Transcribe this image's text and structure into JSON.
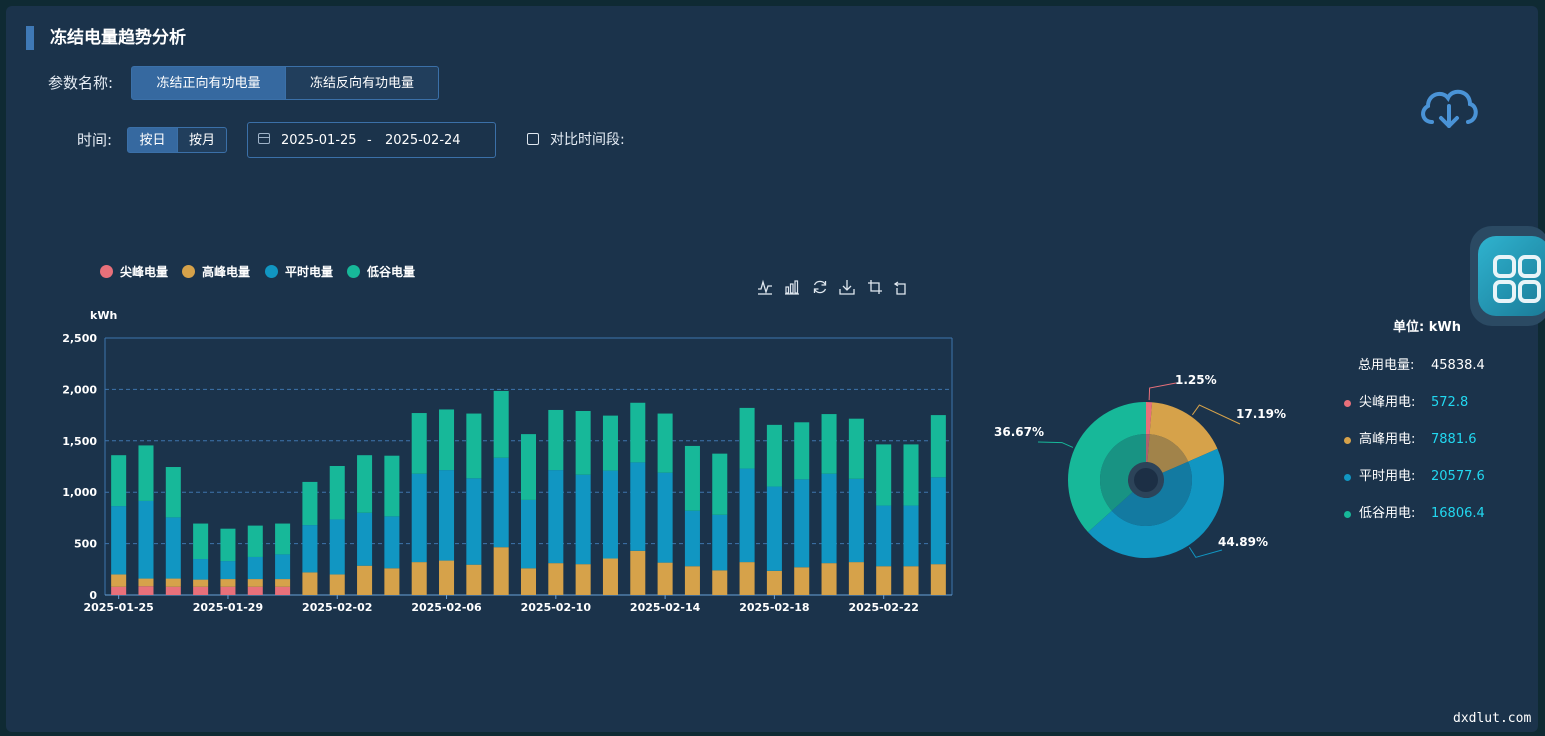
{
  "header": {
    "title": "冻结电量趋势分析"
  },
  "params": {
    "label": "参数名称:",
    "options": [
      "冻结正向有功电量",
      "冻结反向有功电量"
    ],
    "selected": 0
  },
  "time": {
    "label": "时间:",
    "modes": [
      "按日",
      "按月"
    ],
    "selected_mode": 0,
    "start": "2025-01-25",
    "separator": "-",
    "end": "2025-02-24",
    "compare_label": "对比时间段:",
    "compare_checked": false
  },
  "icons": {
    "download": "cloud-download-icon",
    "float": "app-grid-icon"
  },
  "colors": {
    "peak": "#e8707a",
    "high": "#d6a24a",
    "flat": "#1196c2",
    "valley": "#17b899",
    "axis": "#3e74ad"
  },
  "chart_data": [
    {
      "type": "bar",
      "stacked": true,
      "ylabel": "kWh",
      "ylim": [
        0,
        2500
      ],
      "yticks": [
        "0",
        "500",
        "1,000",
        "1,500",
        "2,000",
        "2,500"
      ],
      "grid": true,
      "legend_position": "top-left",
      "x": [
        "2025-01-25",
        "2025-01-26",
        "2025-01-27",
        "2025-01-28",
        "2025-01-29",
        "2025-01-30",
        "2025-01-31",
        "2025-02-01",
        "2025-02-02",
        "2025-02-03",
        "2025-02-04",
        "2025-02-05",
        "2025-02-06",
        "2025-02-07",
        "2025-02-08",
        "2025-02-09",
        "2025-02-10",
        "2025-02-11",
        "2025-02-12",
        "2025-02-13",
        "2025-02-14",
        "2025-02-15",
        "2025-02-16",
        "2025-02-17",
        "2025-02-18",
        "2025-02-19",
        "2025-02-20",
        "2025-02-21",
        "2025-02-22",
        "2025-02-23",
        "2025-02-24"
      ],
      "xtick_labels": [
        "2025-01-25",
        "2025-01-29",
        "2025-02-02",
        "2025-02-06",
        "2025-02-10",
        "2025-02-14",
        "2025-02-18",
        "2025-02-22"
      ],
      "series": [
        {
          "name": "尖峰电量",
          "values": [
            80,
            85,
            80,
            80,
            80,
            80,
            80,
            0,
            0,
            0,
            0,
            0,
            0,
            0,
            0,
            0,
            0,
            0,
            0,
            0,
            0,
            0,
            0,
            0,
            0,
            0,
            0,
            0,
            0,
            0,
            0
          ]
        },
        {
          "name": "高峰电量",
          "values": [
            120,
            75,
            80,
            70,
            75,
            75,
            75,
            220,
            200,
            285,
            260,
            320,
            335,
            295,
            465,
            260,
            310,
            300,
            355,
            430,
            315,
            280,
            240,
            320,
            235,
            270,
            310,
            320,
            280,
            280,
            300
          ]
        },
        {
          "name": "平时电量",
          "values": [
            665,
            755,
            595,
            200,
            175,
            215,
            240,
            460,
            535,
            515,
            505,
            860,
            880,
            840,
            870,
            665,
            905,
            870,
            855,
            860,
            875,
            540,
            540,
            910,
            820,
            855,
            870,
            810,
            590,
            590,
            845
          ]
        },
        {
          "name": "低谷电量",
          "values": [
            495,
            540,
            490,
            345,
            315,
            305,
            300,
            420,
            520,
            560,
            590,
            590,
            590,
            630,
            650,
            640,
            585,
            620,
            535,
            580,
            575,
            630,
            595,
            590,
            600,
            555,
            580,
            585,
            595,
            595,
            605
          ]
        }
      ],
      "tools": [
        "line-chart-icon",
        "bar-chart-icon",
        "refresh-icon",
        "save-image-icon",
        "zoom-icon",
        "zoom-reset-icon"
      ]
    },
    {
      "type": "pie",
      "unit_label": "单位: kWh",
      "total_label": "总用电量:",
      "total_value": "45838.4",
      "slices": [
        {
          "name": "尖峰用电:",
          "value": 572.8,
          "value_text": "572.8",
          "percent": "1.25%"
        },
        {
          "name": "高峰用电:",
          "value": 7881.6,
          "value_text": "7881.6",
          "percent": "17.19%"
        },
        {
          "name": "平时用电:",
          "value": 20577.6,
          "value_text": "20577.6",
          "percent": "44.89%"
        },
        {
          "name": "低谷用电:",
          "value": 16806.4,
          "value_text": "16806.4",
          "percent": "36.67%"
        }
      ]
    }
  ],
  "watermark": "dxdlut.com"
}
